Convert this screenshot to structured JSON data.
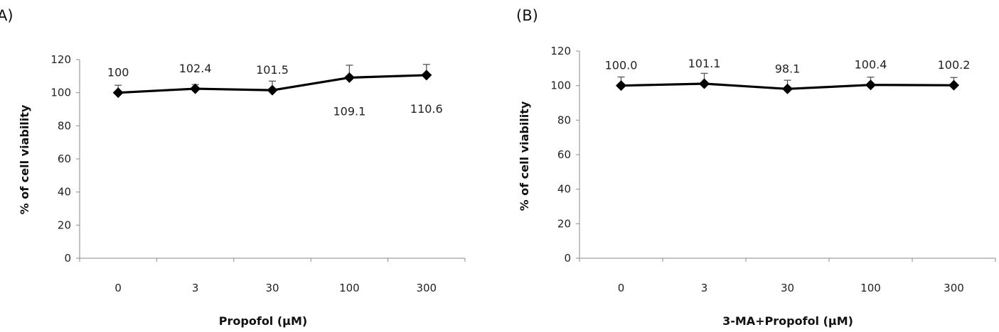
{
  "chart_data": [
    {
      "panel": "A)",
      "type": "line",
      "xlabel": "Propofol (µM)",
      "ylabel": "% of cell viability",
      "categories": [
        "0",
        "3",
        "30",
        "100",
        "300"
      ],
      "values": [
        100,
        102.4,
        101.5,
        109.1,
        110.6
      ],
      "error": [
        4.5,
        2.5,
        5.5,
        7.5,
        6.5
      ],
      "data_labels": [
        "100",
        "102.4",
        "101.5",
        "109.1",
        "110.6"
      ],
      "label_position": [
        "above",
        "above",
        "above",
        "below",
        "below"
      ],
      "yticks": [
        "0",
        "20",
        "40",
        "60",
        "80",
        "100",
        "120"
      ],
      "ylim": [
        0,
        120
      ],
      "grid": false,
      "marker": "diamond"
    },
    {
      "panel": "(B)",
      "type": "line",
      "xlabel": "3-MA+Propofol (µM)",
      "ylabel": "% of cell viability",
      "categories": [
        "0",
        "3",
        "30",
        "100",
        "300"
      ],
      "values": [
        100.0,
        101.1,
        98.1,
        100.4,
        100.2
      ],
      "error": [
        5.0,
        6.0,
        5.0,
        4.5,
        4.5
      ],
      "data_labels": [
        "100.0",
        "101.1",
        "98.1",
        "100.4",
        "100.2"
      ],
      "label_position": [
        "above",
        "above",
        "above",
        "above",
        "above"
      ],
      "yticks": [
        "0",
        "20",
        "40",
        "60",
        "80",
        "100",
        "120"
      ],
      "ylim": [
        0,
        120
      ],
      "grid": false,
      "marker": "diamond"
    }
  ]
}
